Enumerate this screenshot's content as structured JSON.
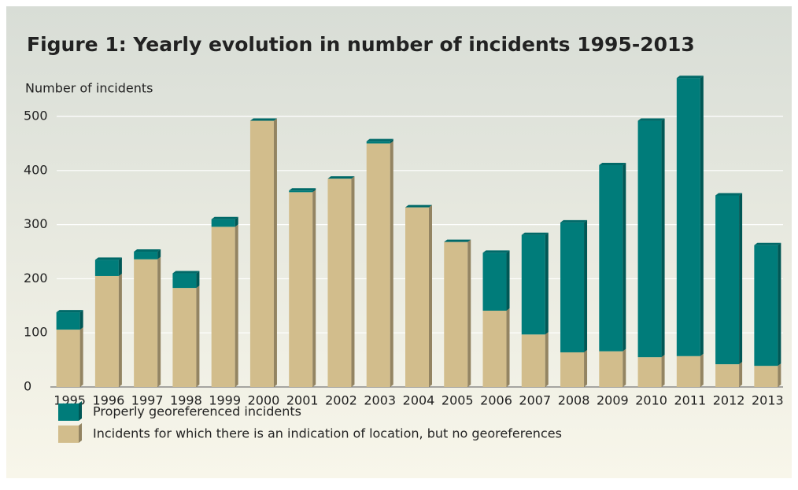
{
  "chart_data": {
    "type": "stacked_bar",
    "title": "Figure 1: Yearly evolution in number of incidents 1995-2013",
    "y_axis_label": "Number of incidents",
    "categories": [
      "1995",
      "1996",
      "1997",
      "1998",
      "1999",
      "2000",
      "2001",
      "2002",
      "2003",
      "2004",
      "2005",
      "2006",
      "2007",
      "2008",
      "2009",
      "2010",
      "2011",
      "2012",
      "2013"
    ],
    "series": [
      {
        "name": "Incidents for which there is an indication of location, but no georeferences",
        "color": "#d2bd8c",
        "values": [
          106,
          205,
          236,
          183,
          296,
          492,
          360,
          385,
          450,
          332,
          268,
          141,
          97,
          64,
          66,
          55,
          57,
          42,
          39
        ]
      },
      {
        "name": "Properly georeferenced incidents",
        "color": "#007c7a",
        "values": [
          32,
          30,
          14,
          27,
          14,
          0,
          3,
          0,
          4,
          0,
          0,
          107,
          184,
          240,
          344,
          437,
          514,
          312,
          223
        ]
      }
    ],
    "ylim": [
      0,
      580
    ],
    "yticks": [
      0,
      100,
      200,
      300,
      400,
      500
    ],
    "grid": true
  }
}
